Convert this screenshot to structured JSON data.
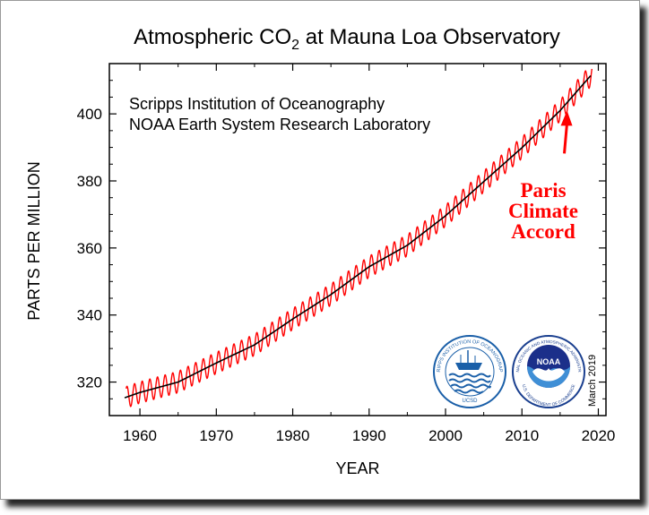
{
  "chart_data": {
    "type": "line",
    "title_main": "Atmospheric CO",
    "title_sub": "2",
    "title_rest": " at Mauna Loa Observatory",
    "credit_lines": [
      "Scripps Institution of Oceanography",
      "NOAA Earth System Research Laboratory"
    ],
    "xlabel": "YEAR",
    "ylabel": "PARTS PER MILLION",
    "xlim": [
      1956,
      2021
    ],
    "ylim": [
      310,
      415
    ],
    "xticks": [
      "1960",
      "1970",
      "1980",
      "1990",
      "2000",
      "2010",
      "2020"
    ],
    "yticks": [
      "320",
      "340",
      "360",
      "380",
      "400"
    ],
    "date_note": "March 2019",
    "annotation": {
      "lines": [
        "Paris",
        "Climate",
        "Accord"
      ],
      "points_to_year": 2015.9,
      "points_to_ppm": 401,
      "color": "#ff0000"
    },
    "series": [
      {
        "kind": "monthly",
        "color": "#ff0000",
        "seasonal_amplitude_ppm": 3.2,
        "x": [
          1958.2,
          2019.2
        ]
      },
      {
        "kind": "annual_trend",
        "color": "#000000",
        "x": [
          1958,
          1960,
          1965,
          1970,
          1975,
          1980,
          1985,
          1990,
          1995,
          2000,
          2005,
          2010,
          2015,
          2019
        ],
        "values": [
          315.3,
          316.9,
          320.0,
          325.7,
          331.1,
          338.8,
          346.1,
          354.4,
          360.8,
          369.6,
          379.8,
          389.9,
          401.0,
          411.4
        ]
      }
    ],
    "logos": [
      "scripps-logo",
      "noaa-logo"
    ],
    "logo_text": {
      "scripps": "SCRIPPS INSTITUTION OF OCEANOGRAPHY",
      "scripps_bottom": "UCSD",
      "noaa_center": "NOAA",
      "noaa_ring": "NATIONAL OCEANIC AND ATMOSPHERIC ADMINISTRATION",
      "noaa_bottom": "U.S. DEPARTMENT OF COMMERCE"
    }
  }
}
